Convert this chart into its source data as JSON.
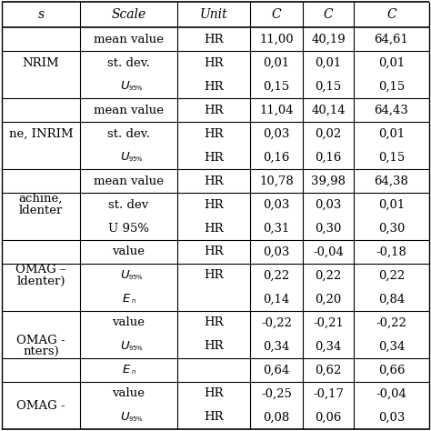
{
  "col_headers": [
    "s",
    "Scale",
    "Unit",
    "C",
    "C",
    "C"
  ],
  "groups": [
    {
      "label": "NRIM",
      "rows": [
        [
          "mean value",
          "HR",
          "11,00",
          "40,19",
          "64,61"
        ],
        [
          "st. dev.",
          "HR",
          "0,01",
          "0,01",
          "0,01"
        ],
        [
          "U_95",
          "HR",
          "0,15",
          "0,15",
          "0,15"
        ]
      ]
    },
    {
      "label": "ne, INRIM",
      "rows": [
        [
          "mean value",
          "HR",
          "11,04",
          "40,14",
          "64,43"
        ],
        [
          "st. dev.",
          "HR",
          "0,03",
          "0,02",
          "0,01"
        ],
        [
          "U_95",
          "HR",
          "0,16",
          "0,16",
          "0,15"
        ]
      ]
    },
    {
      "label": "achine,\nldenter",
      "rows": [
        [
          "mean value",
          "HR",
          "10,78",
          "39,98",
          "64,38"
        ],
        [
          "st. dev",
          "HR",
          "0,03",
          "0,03",
          "0,01"
        ],
        [
          "U 95%",
          "HR",
          "0,31",
          "0,30",
          "0,30"
        ]
      ]
    },
    {
      "label": "OMAG –\nldenter)",
      "rows": [
        [
          "value",
          "HR",
          "0,03",
          "-0,04",
          "-0,18"
        ],
        [
          "U_95",
          "HR",
          "0,22",
          "0,22",
          "0,22"
        ],
        [
          "E_n",
          "",
          "0,14",
          "0,20",
          "0,84"
        ]
      ]
    },
    {
      "label": "OMAG -\nnters)",
      "rows": [
        [
          "value",
          "HR",
          "-0,22",
          "-0,21",
          "-0,22"
        ],
        [
          "U_95",
          "HR",
          "0,34",
          "0,34",
          "0,34"
        ],
        [
          "E_n",
          "",
          "0,64",
          "0,62",
          "0,66"
        ]
      ]
    },
    {
      "label": "OMAG -",
      "rows": [
        [
          "value",
          "HR",
          "-0,25",
          "-0,17",
          "-0,04"
        ],
        [
          "U_95",
          "HR",
          "0,08",
          "0,06",
          "0,03"
        ]
      ]
    }
  ],
  "background_color": "#ffffff",
  "text_color": "#000000",
  "line_color": "#000000"
}
